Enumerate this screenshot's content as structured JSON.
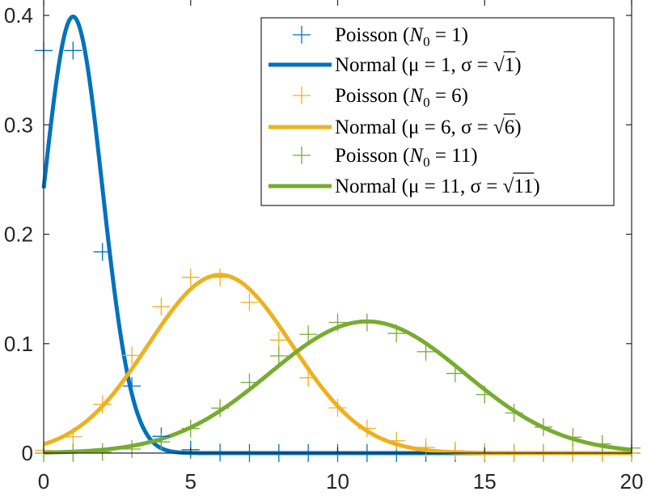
{
  "chart_data": {
    "type": "line",
    "title": "",
    "xlabel": "",
    "ylabel": "",
    "xlim": [
      0,
      20
    ],
    "ylim": [
      0,
      0.42
    ],
    "grid": false,
    "legend_placement": "top-right",
    "x_ticks": [
      0,
      5,
      10,
      15,
      20
    ],
    "x_tick_labels": [
      "0",
      "5",
      "10",
      "15",
      "20"
    ],
    "y_ticks": [
      0,
      0.1,
      0.2,
      0.3,
      0.4
    ],
    "y_tick_labels": [
      "0",
      "0.1",
      "0.2",
      "0.3",
      "0.4"
    ],
    "series": [
      {
        "name": "Poisson (N0 = 1)",
        "kind": "poisson",
        "lambda": 1,
        "color": "#0072BD",
        "x": [
          0,
          1,
          2,
          3,
          4,
          5,
          6,
          7,
          8,
          9,
          10,
          11,
          12,
          13,
          14,
          15,
          16,
          17,
          18,
          19,
          20
        ],
        "values": [
          0.3679,
          0.3679,
          0.1839,
          0.0613,
          0.0153,
          0.0031,
          0.0005,
          0.0001,
          0,
          0,
          0,
          0,
          0,
          0,
          0,
          0,
          0,
          0,
          0,
          0,
          0
        ]
      },
      {
        "name": "Normal (μ = 1, σ = √1)",
        "kind": "normal",
        "mu": 1,
        "sigma2": 1,
        "color": "#0072BD"
      },
      {
        "name": "Poisson (N0 = 6)",
        "kind": "poisson",
        "lambda": 6,
        "color": "#EDB120",
        "x": [
          0,
          1,
          2,
          3,
          4,
          5,
          6,
          7,
          8,
          9,
          10,
          11,
          12,
          13,
          14,
          15,
          16,
          17,
          18,
          19,
          20
        ],
        "values": [
          0.0025,
          0.0149,
          0.0446,
          0.0892,
          0.1339,
          0.1606,
          0.1606,
          0.1377,
          0.1033,
          0.0688,
          0.0413,
          0.0225,
          0.0113,
          0.0052,
          0.0022,
          0.0009,
          0.0003,
          0.0001,
          0,
          0,
          0
        ]
      },
      {
        "name": "Normal (μ = 6, σ = √6)",
        "kind": "normal",
        "mu": 6,
        "sigma2": 6,
        "color": "#EDB120"
      },
      {
        "name": "Poisson (N0 = 11)",
        "kind": "poisson",
        "lambda": 11,
        "color": "#77AC30",
        "x": [
          0,
          1,
          2,
          3,
          4,
          5,
          6,
          7,
          8,
          9,
          10,
          11,
          12,
          13,
          14,
          15,
          16,
          17,
          18,
          19,
          20
        ],
        "values": [
          0,
          0.0002,
          0.001,
          0.0037,
          0.0102,
          0.0224,
          0.0411,
          0.0646,
          0.0888,
          0.1085,
          0.1194,
          0.1194,
          0.1094,
          0.0926,
          0.0728,
          0.0534,
          0.0367,
          0.0237,
          0.0145,
          0.0084,
          0.0046
        ]
      },
      {
        "name": "Normal (μ = 11, σ = √11)",
        "kind": "normal",
        "mu": 11,
        "sigma2": 11,
        "color": "#77AC30"
      }
    ],
    "legend": [
      {
        "kind": "poisson",
        "color": "#0072BD",
        "pre": "Poisson (",
        "sym": "N",
        "sub": "0",
        "post": " = 1)"
      },
      {
        "kind": "normal",
        "color": "#0072BD",
        "pre": "Normal (",
        "body": "μ = 1, σ = ",
        "root": "1",
        "post": ")"
      },
      {
        "kind": "poisson",
        "color": "#EDB120",
        "pre": "Poisson (",
        "sym": "N",
        "sub": "0",
        "post": " = 6)"
      },
      {
        "kind": "normal",
        "color": "#EDB120",
        "pre": "Normal (",
        "body": "μ = 6, σ = ",
        "root": "6",
        "post": ")"
      },
      {
        "kind": "poisson",
        "color": "#77AC30",
        "pre": "Poisson (",
        "sym": "N",
        "sub": "0",
        "post": " = 11)"
      },
      {
        "kind": "normal",
        "color": "#77AC30",
        "pre": "Normal (",
        "body": "μ = 11, σ = ",
        "root": "11",
        "post": ")"
      }
    ]
  }
}
